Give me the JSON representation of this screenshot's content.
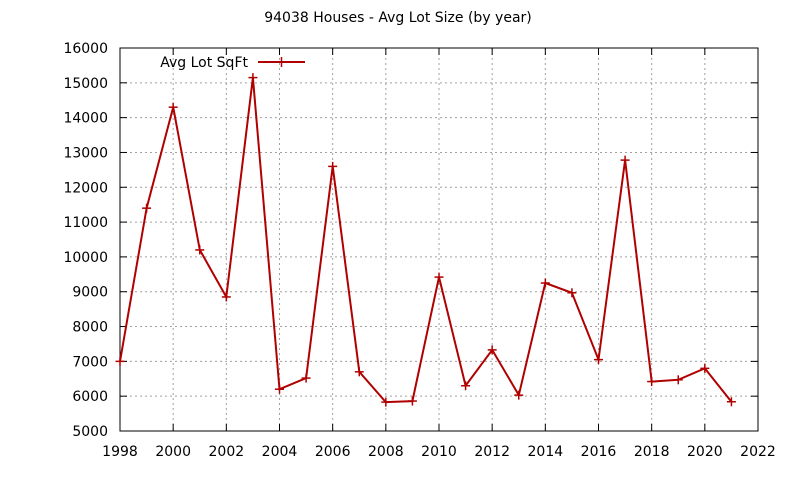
{
  "chart_data": {
    "type": "line",
    "title": "94038 Houses - Avg Lot Size (by year)",
    "xlabel": "",
    "ylabel": "",
    "xlim": [
      1998,
      2022
    ],
    "ylim": [
      5000,
      16000
    ],
    "x_ticks": [
      1998,
      2000,
      2002,
      2004,
      2006,
      2008,
      2010,
      2012,
      2014,
      2016,
      2018,
      2020,
      2022
    ],
    "y_ticks": [
      5000,
      6000,
      7000,
      8000,
      9000,
      10000,
      11000,
      12000,
      13000,
      14000,
      15000,
      16000
    ],
    "grid": true,
    "legend_position": "top-left",
    "series": [
      {
        "name": "Avg Lot SqFt",
        "color": "#b00000",
        "marker": "plus",
        "x": [
          1998,
          1999,
          2000,
          2001,
          2002,
          2003,
          2004,
          2005,
          2006,
          2007,
          2008,
          2009,
          2010,
          2011,
          2012,
          2013,
          2014,
          2015,
          2016,
          2017,
          2018,
          2019,
          2020,
          2021
        ],
        "y": [
          7000,
          11400,
          14300,
          10200,
          8850,
          15150,
          6200,
          6520,
          12600,
          6700,
          5830,
          5860,
          9420,
          6300,
          7330,
          6030,
          9250,
          8970,
          7050,
          12780,
          6420,
          6470,
          6800,
          5840
        ]
      }
    ]
  }
}
